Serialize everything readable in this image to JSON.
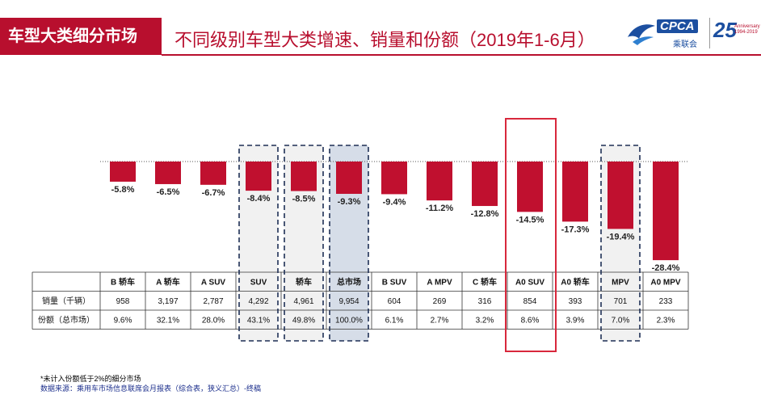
{
  "header": {
    "section_tag": "车型大类细分市场",
    "title": "不同级别车型大类增速、销量和份额（2019年1-6月）"
  },
  "logo": {
    "brand": "CPCA",
    "sub": "乘联会",
    "anniversary": "25",
    "anniversary_small": "Anniversary 1994-2019"
  },
  "chart_data": {
    "type": "bar",
    "categories": [
      "B 轿车",
      "A 轿车",
      "A SUV",
      "SUV",
      "轿车",
      "总市场",
      "B SUV",
      "A MPV",
      "C 轿车",
      "A0 SUV",
      "A0 轿车",
      "MPV",
      "A0 MPV"
    ],
    "values": [
      -5.8,
      -6.5,
      -6.7,
      -8.4,
      -8.5,
      -9.3,
      -9.4,
      -11.2,
      -12.8,
      -14.5,
      -17.3,
      -19.4,
      -28.4
    ],
    "value_labels": [
      "-5.8%",
      "-6.5%",
      "-6.7%",
      "-8.4%",
      "-8.5%",
      "-9.3%",
      "-9.4%",
      "-11.2%",
      "-12.8%",
      "-14.5%",
      "-17.3%",
      "-19.4%",
      "-28.4%"
    ],
    "ylim": [
      -30,
      0
    ],
    "bar_color": "#c0102f",
    "highlight_dashed": [
      "SUV",
      "轿车",
      "总市场",
      "MPV"
    ],
    "highlight_filled": [
      "总市场"
    ],
    "highlight_red_box": [
      "A0 SUV"
    ],
    "table": {
      "rows": [
        {
          "label": "销量（千辆）",
          "values": [
            "958",
            "3,197",
            "2,787",
            "4,292",
            "4,961",
            "9,954",
            "604",
            "269",
            "316",
            "854",
            "393",
            "701",
            "233"
          ]
        },
        {
          "label": "份额（总市场）",
          "values": [
            "9.6%",
            "32.1%",
            "28.0%",
            "43.1%",
            "49.8%",
            "100.0%",
            "6.1%",
            "2.7%",
            "3.2%",
            "8.6%",
            "3.9%",
            "7.0%",
            "2.3%"
          ]
        }
      ]
    }
  },
  "footer": {
    "note": "*未计入份额低于2%的细分市场",
    "source": "数据来源：乘用车市场信息联席会月报表（综合表，狭义汇总）-终稿"
  }
}
